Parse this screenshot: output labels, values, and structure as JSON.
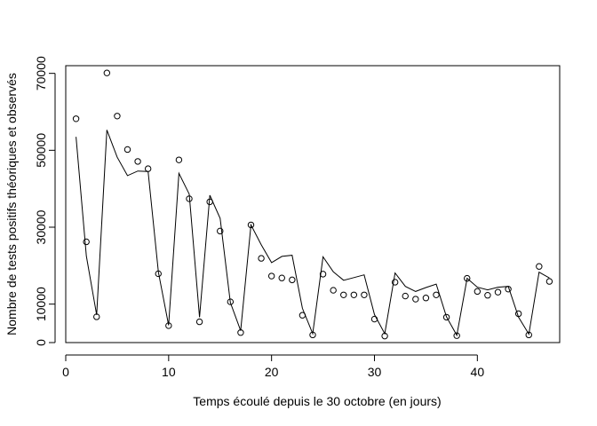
{
  "chart_data": {
    "type": "scatter",
    "title": "",
    "xlabel": "Temps écoulé depuis le 30 octobre (en jours)",
    "ylabel": "Nombre de tests positifs théoriques et observés",
    "xlim": [
      0,
      48
    ],
    "ylim": [
      0,
      72000
    ],
    "xticks": [
      0,
      10,
      20,
      30,
      40
    ],
    "xtick_labels": [
      "0",
      "10",
      "20",
      "30",
      "40"
    ],
    "yticks": [
      0,
      10000,
      30000,
      50000,
      70000
    ],
    "ytick_labels": [
      "0",
      "10000",
      "30000",
      "50000",
      "70000"
    ],
    "grid": false,
    "legend": false,
    "x": [
      1,
      2,
      3,
      4,
      5,
      6,
      7,
      8,
      9,
      10,
      11,
      12,
      13,
      14,
      15,
      16,
      17,
      18,
      19,
      20,
      21,
      22,
      23,
      24,
      25,
      26,
      27,
      28,
      29,
      30,
      31,
      32,
      33,
      34,
      35,
      36,
      37,
      38,
      39,
      40,
      41,
      42,
      43,
      44,
      45,
      46,
      47
    ],
    "series": [
      {
        "type": "scatter",
        "marker": "open-circle",
        "values": [
          58200,
          26200,
          6700,
          70100,
          58900,
          50200,
          47100,
          45200,
          17900,
          4400,
          47500,
          37400,
          5400,
          36600,
          29000,
          10600,
          2600,
          30600,
          21900,
          17300,
          16800,
          16300,
          7100,
          2000,
          17800,
          13600,
          12400,
          12400,
          12400,
          6100,
          1700,
          15700,
          12100,
          11300,
          11600,
          12400,
          6600,
          1800,
          16700,
          13300,
          12300,
          13100,
          13900,
          7500,
          2000,
          19800,
          15900
        ]
      },
      {
        "type": "line",
        "values": [
          53500,
          22500,
          7200,
          55300,
          48200,
          43400,
          44600,
          44500,
          18300,
          4500,
          44000,
          38600,
          6600,
          38300,
          32300,
          10400,
          3100,
          30600,
          25400,
          20800,
          22400,
          22700,
          8900,
          2300,
          22300,
          18400,
          16200,
          16900,
          17600,
          7300,
          2300,
          18100,
          14600,
          13300,
          14300,
          15200,
          6700,
          1900,
          16700,
          14400,
          13700,
          14400,
          14600,
          6600,
          2200,
          18300,
          16800
        ]
      }
    ]
  }
}
